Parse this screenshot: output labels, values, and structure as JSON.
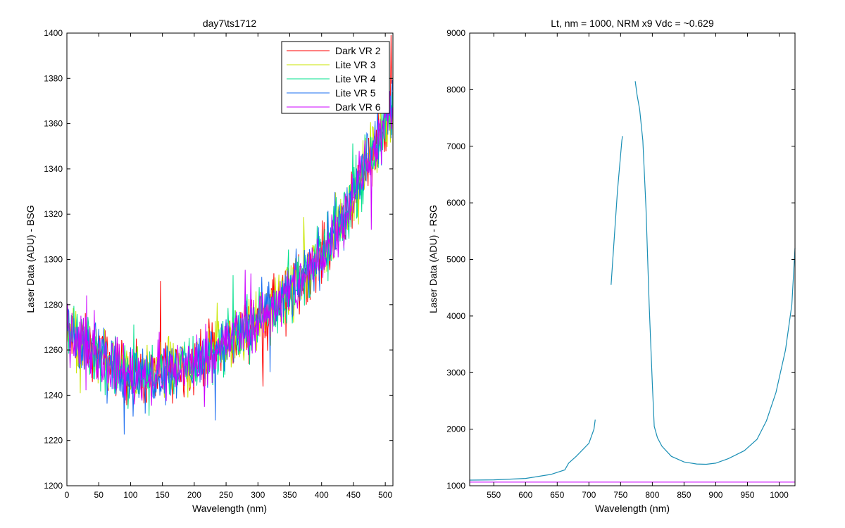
{
  "chart_data": [
    {
      "type": "line",
      "title": "day7\\ts1712",
      "xlabel": "Wavelength (nm)",
      "ylabel": "Laser Data (ADU) - BSG",
      "xlim": [
        0,
        512
      ],
      "ylim": [
        1200,
        1400
      ],
      "xticks": [
        0,
        50,
        100,
        150,
        200,
        250,
        300,
        350,
        400,
        450,
        500
      ],
      "yticks": [
        1200,
        1220,
        1240,
        1260,
        1280,
        1300,
        1320,
        1340,
        1360,
        1380,
        1400
      ],
      "grid": false,
      "legend": "top-right",
      "trend_points": {
        "x": [
          0,
          20,
          50,
          80,
          110,
          130,
          160,
          200,
          250,
          300,
          350,
          400,
          440,
          470,
          500,
          512
        ],
        "y": [
          1268,
          1264,
          1258,
          1252,
          1248,
          1249,
          1251,
          1254,
          1263,
          1273,
          1285,
          1302,
          1322,
          1342,
          1360,
          1368
        ]
      },
      "noise_amplitude": 9,
      "series": [
        {
          "name": "Dark VR 2",
          "color": "#ff0000"
        },
        {
          "name": "Lite VR 3",
          "color": "#c8e600"
        },
        {
          "name": "Lite VR 4",
          "color": "#00e08c"
        },
        {
          "name": "Lite VR 5",
          "color": "#1a6cf0"
        },
        {
          "name": "Dark VR 6",
          "color": "#cc00ff"
        }
      ]
    },
    {
      "type": "line",
      "title": "Lt, nm = 1000, NRM x9 Vdc = ~0.629",
      "xlabel": "Wavelength (nm)",
      "ylabel": "Laser Data (ADU) - RSG",
      "xlim": [
        512,
        1025
      ],
      "ylim": [
        1000,
        9000
      ],
      "xticks": [
        550,
        600,
        650,
        700,
        750,
        800,
        850,
        900,
        950,
        1000
      ],
      "yticks": [
        1000,
        2000,
        3000,
        4000,
        5000,
        6000,
        7000,
        8000,
        9000
      ],
      "grid": false,
      "series": [
        {
          "color": "#1a8fb5",
          "segments": [
            {
              "x": [
                512,
                550,
                600,
                640,
                662,
                668,
                680,
                700,
                708,
                710
              ],
              "y": [
                1100,
                1105,
                1130,
                1200,
                1280,
                1400,
                1520,
                1750,
                2000,
                2170
              ]
            },
            {
              "x": [
                735,
                745,
                752,
                753
              ],
              "y": [
                4550,
                6200,
                7100,
                7180
              ]
            },
            {
              "x": [
                773,
                776,
                780,
                785,
                790,
                795,
                800,
                803,
                808,
                815,
                830,
                850,
                870,
                885,
                900,
                920,
                945,
                965,
                980,
                995,
                1010,
                1020,
                1025
              ],
              "y": [
                8150,
                7900,
                7650,
                7100,
                5900,
                4200,
                2800,
                2050,
                1850,
                1700,
                1520,
                1420,
                1385,
                1380,
                1400,
                1480,
                1620,
                1820,
                2150,
                2650,
                3400,
                4200,
                5200
              ]
            }
          ]
        },
        {
          "color": "#cc00ff",
          "segments": [
            {
              "x": [
                512,
                1025
              ],
              "y": [
                1065,
                1065
              ]
            }
          ]
        }
      ]
    }
  ]
}
